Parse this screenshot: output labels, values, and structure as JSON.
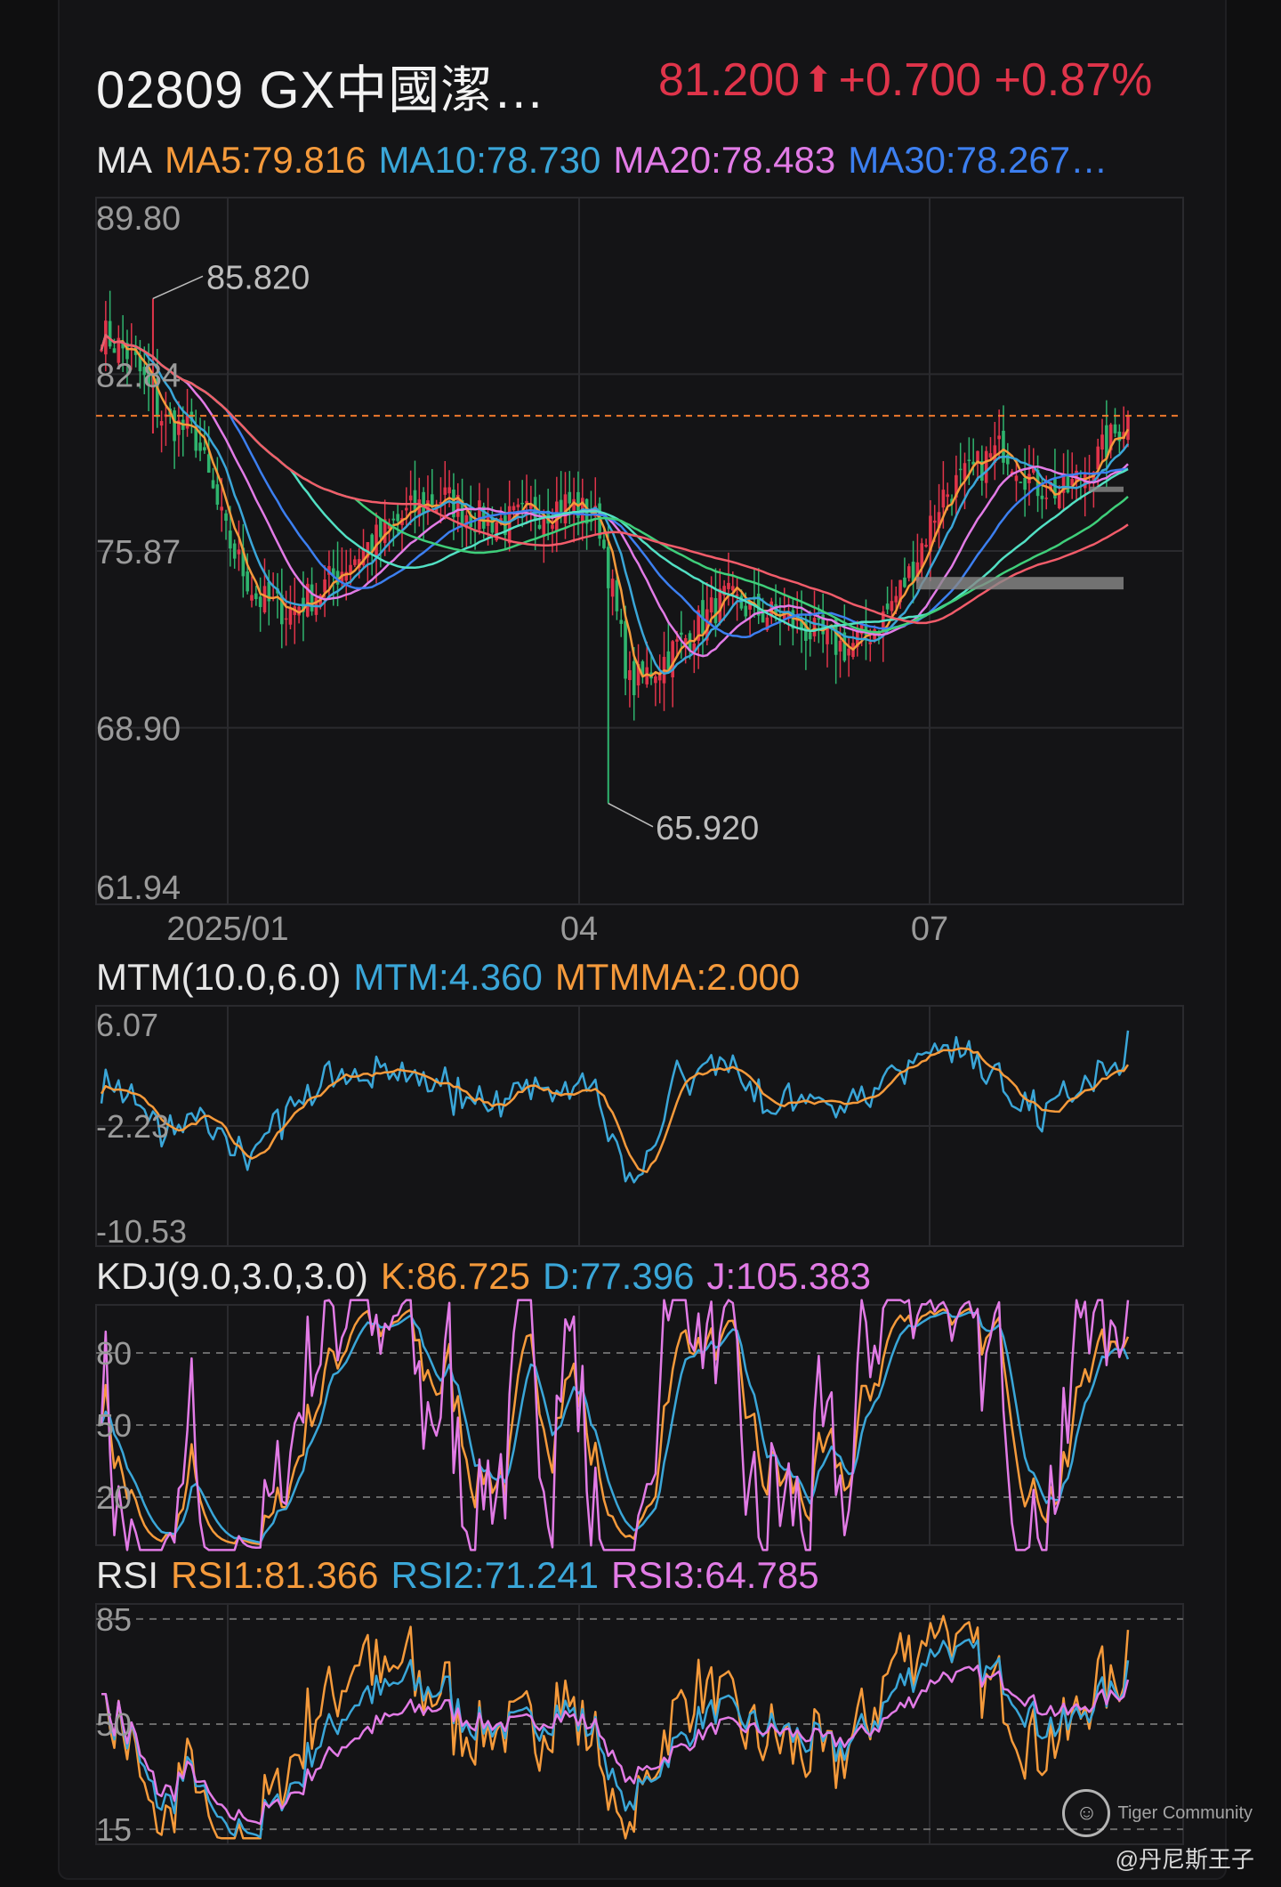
{
  "header": {
    "title": "02809 GX中國潔…",
    "price": "81.200",
    "change": "+0.700",
    "change_pct": "+0.87%",
    "up_color": "#e0344a"
  },
  "colors": {
    "ma5": "#f59a3b",
    "ma10": "#3aa6d8",
    "ma20": "#e27be6",
    "ma30": "#3c7ff0",
    "ma60": "#52e0c4",
    "ma_green": "#3fcf7a",
    "ma120": "#f25c6a",
    "up": "#e0344a",
    "down": "#2fb46e",
    "grid": "#2a2a2e",
    "axis_text": "#9a9a9a"
  },
  "ma_legend": {
    "label": "MA",
    "ma5": "MA5:79.816",
    "ma10": "MA10:78.730",
    "ma20": "MA20:78.483",
    "ma30": "MA30:78.267…"
  },
  "mtm_legend": {
    "label": "MTM(10.0,6.0)",
    "mtm": "MTM:4.360",
    "mtmma": "MTMMA:2.000"
  },
  "kdj_legend": {
    "label": "KDJ(9.0,3.0,3.0)",
    "k": "K:86.725",
    "d": "D:77.396",
    "j": "J:105.383"
  },
  "rsi_legend": {
    "label": "RSI",
    "rsi1": "RSI1:81.366",
    "rsi2": "RSI2:71.241",
    "rsi3": "RSI3:64.785"
  },
  "watermark": {
    "brand": "Tiger Community",
    "author": "@丹尼斯王子"
  },
  "chart_data": [
    {
      "type": "candlestick",
      "y_ticks": [
        "89.80",
        "82.84",
        "75.87",
        "68.90",
        "61.94"
      ],
      "ylim": [
        61.94,
        89.8
      ],
      "x_ticks": [
        "2025/01",
        "04",
        "07"
      ],
      "annotations": {
        "high": "85.820",
        "low": "65.920"
      },
      "last_close": 81.2,
      "anchor_closes": [
        84.5,
        83.5,
        81.0,
        80.5,
        76.5,
        74.0,
        73.5,
        74.3,
        75.5,
        76.5,
        77.5,
        78.0,
        77.2,
        77.0,
        77.4,
        77.8,
        77.0,
        70.5,
        71.5,
        72.7,
        74.0,
        73.5,
        73.2,
        72.5,
        72.0,
        73.0,
        75.0,
        78.0,
        79.0,
        80.0,
        78.5,
        78.2,
        79.5,
        81.2
      ],
      "series": [
        {
          "name": "MA5",
          "color_key": "ma5"
        },
        {
          "name": "MA10",
          "color_key": "ma10"
        },
        {
          "name": "MA20",
          "color_key": "ma20"
        },
        {
          "name": "MA30",
          "color_key": "ma30"
        }
      ]
    },
    {
      "type": "line",
      "y_ticks": [
        "6.07",
        "-2.23",
        "-10.53"
      ],
      "ylim": [
        -10.53,
        6.07
      ],
      "series": [
        {
          "name": "MTM",
          "color_key": "ma10",
          "last": 4.36
        },
        {
          "name": "MTMMA",
          "color_key": "ma5",
          "last": 2.0
        }
      ]
    },
    {
      "type": "line",
      "y_ticks": [
        "80",
        "50",
        "20"
      ],
      "ylim": [
        0,
        100
      ],
      "series": [
        {
          "name": "K",
          "color_key": "ma5",
          "last": 86.725
        },
        {
          "name": "D",
          "color_key": "ma10",
          "last": 77.396
        },
        {
          "name": "J",
          "color_key": "ma20",
          "last": 105.383
        }
      ]
    },
    {
      "type": "line",
      "y_ticks": [
        "85",
        "50",
        "15"
      ],
      "ylim": [
        10,
        90
      ],
      "series": [
        {
          "name": "RSI1",
          "color_key": "ma5",
          "last": 81.366
        },
        {
          "name": "RSI2",
          "color_key": "ma10",
          "last": 71.241
        },
        {
          "name": "RSI3",
          "color_key": "ma20",
          "last": 64.785
        }
      ]
    }
  ]
}
